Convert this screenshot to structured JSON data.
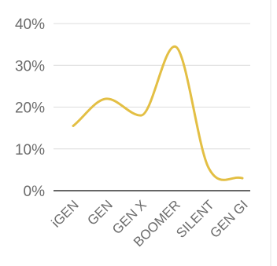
{
  "chart_data": {
    "type": "line",
    "categories": [
      "iGEN",
      "GEN",
      "GEN X",
      "BOOMER",
      "SILENT",
      "GEN GI"
    ],
    "series": [
      {
        "values": [
          15.5,
          22,
          18,
          34.5,
          5.5,
          3
        ]
      }
    ],
    "y_ticks": [
      "0%",
      "10%",
      "20%",
      "30%",
      "40%"
    ],
    "y_tick_values": [
      0,
      10,
      20,
      30,
      40
    ],
    "ylim": [
      0,
      40
    ],
    "title": "",
    "xlabel": "",
    "ylabel": "",
    "grid": true,
    "smooth": true,
    "colors": {
      "line": "#e3bf44",
      "grid": "#dcdcdc",
      "axis": "#333333",
      "text": "#6b6b6b"
    }
  }
}
